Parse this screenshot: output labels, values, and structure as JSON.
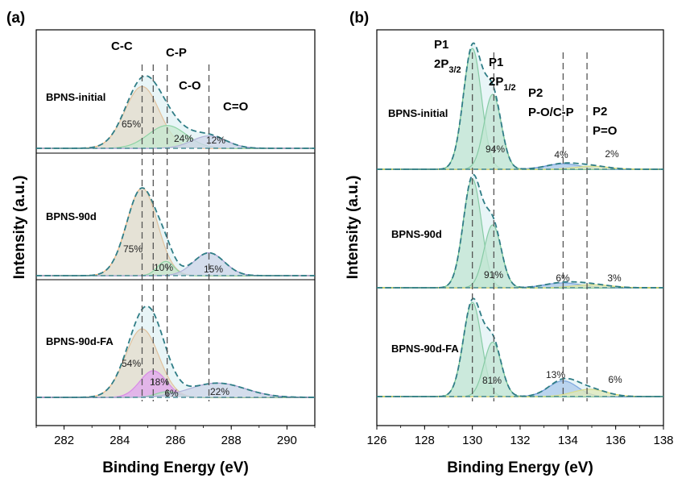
{
  "chart_data": [
    {
      "type": "area",
      "panel_label": "(a)",
      "xlabel": "Binding Energy (eV)",
      "ylabel": "Intensity (a.u.)",
      "xlim": [
        281,
        291
      ],
      "xticks": [
        "282",
        "284",
        "286",
        "288",
        "290"
      ],
      "grid": false,
      "peaks": [
        {
          "name": "C-C",
          "position": 284.8,
          "color": "#f2a35e"
        },
        {
          "name": "C-P",
          "position": 285.2,
          "color": "#5cc26a"
        },
        {
          "name": "C-O",
          "position": 285.7,
          "color": "#5cc26a"
        },
        {
          "name": "C=O",
          "position": 287.2,
          "color": "#9a86c8"
        }
      ],
      "spectra": [
        {
          "sample": "BPNS-initial",
          "components": [
            {
              "peak": "C-C",
              "center": 284.8,
              "amplitude": 0.65,
              "sigma": 0.62,
              "color": "#f2a35e",
              "fill": "#f8d2b0",
              "label": "65%"
            },
            {
              "peak": "C-P/C-O",
              "center": 285.7,
              "amplitude": 0.24,
              "sigma": 0.68,
              "color": "#5cc26a",
              "fill": "#bfe7b8",
              "label": "24%"
            },
            {
              "peak": "C=O",
              "center": 287.2,
              "amplitude": 0.13,
              "sigma": 0.62,
              "color": "#9a86c8",
              "fill": "#cfc4e6",
              "label": "12%"
            }
          ]
        },
        {
          "sample": "BPNS-90d",
          "components": [
            {
              "peak": "C-C",
              "center": 284.8,
              "amplitude": 0.92,
              "sigma": 0.55,
              "color": "#f2a35e",
              "fill": "#f8d2b0",
              "label": "75%"
            },
            {
              "peak": "C-P/C-O",
              "center": 285.65,
              "amplitude": 0.15,
              "sigma": 0.3,
              "color": "#5cc26a",
              "fill": "#bfe7b8",
              "label": "10%"
            },
            {
              "peak": "C=O",
              "center": 287.2,
              "amplitude": 0.24,
              "sigma": 0.55,
              "color": "#9a86c8",
              "fill": "#cfc4e6",
              "label": "15%"
            }
          ]
        },
        {
          "sample": "BPNS-90d-FA",
          "components": [
            {
              "peak": "C-C",
              "center": 284.8,
              "amplitude": 0.72,
              "sigma": 0.6,
              "color": "#f2a35e",
              "fill": "#f8d2b0",
              "label": "54%"
            },
            {
              "peak": "C-P",
              "center": 285.2,
              "amplitude": 0.28,
              "sigma": 0.48,
              "color": "#e23ce0",
              "fill": "#f26ff0",
              "label": "18%"
            },
            {
              "peak": "C-O",
              "center": 285.7,
              "amplitude": 0.06,
              "sigma": 0.4,
              "color": "#5cc26a",
              "fill": "#bfe7b8",
              "label": "6%"
            },
            {
              "peak": "C=O",
              "center": 287.5,
              "amplitude": 0.15,
              "sigma": 1.0,
              "color": "#9a86c8",
              "fill": "#cfc4e6",
              "label": "22%"
            }
          ]
        }
      ]
    },
    {
      "type": "area",
      "panel_label": "(b)",
      "xlabel": "Binding Energy (eV)",
      "ylabel": "Intensity (a.u.)",
      "xlim": [
        126,
        138
      ],
      "xticks": [
        "126",
        "128",
        "130",
        "132",
        "134",
        "136",
        "138"
      ],
      "grid": false,
      "peaks": [
        {
          "name": "P1 2P3/2",
          "line1": "P1",
          "line2_main": "2P",
          "line2_sub": "3/2",
          "position": 130.0
        },
        {
          "name": "P1 2P1/2",
          "line1": "P1",
          "line2_main": "2P",
          "line2_sub": "1/2",
          "position": 130.9
        },
        {
          "name": "P2 P-O/C-P",
          "line1": "P2",
          "line2_main": "P-O/C-P",
          "line2_sub": "",
          "position": 133.8
        },
        {
          "name": "P2 P=O",
          "line1": "P2",
          "line2_main": "P=O",
          "line2_sub": "",
          "position": 134.8
        }
      ],
      "spectra": [
        {
          "sample": "BPNS-initial",
          "components": [
            {
              "peak": "2P3/2",
              "center": 130.0,
              "amplitude": 1.0,
              "sigma": 0.38,
              "color": "#4fb36b",
              "fill": "#b9e3bd",
              "label": "94%"
            },
            {
              "peak": "2P1/2",
              "center": 130.85,
              "amplitude": 0.62,
              "sigma": 0.36,
              "color": "#4fb36b",
              "fill": "#b9e3bd",
              "label": ""
            },
            {
              "peak": "P-O/C-P",
              "center": 133.8,
              "amplitude": 0.045,
              "sigma": 0.7,
              "color": "#3b6fd1",
              "fill": "#8fb0ea",
              "label": "4%"
            },
            {
              "peak": "P=O",
              "center": 135.0,
              "amplitude": 0.025,
              "sigma": 0.7,
              "color": "#e3d43c",
              "fill": "#f1ea8c",
              "label": "2%"
            }
          ]
        },
        {
          "sample": "BPNS-90d",
          "components": [
            {
              "peak": "2P3/2",
              "center": 130.0,
              "amplitude": 0.9,
              "sigma": 0.38,
              "color": "#4fb36b",
              "fill": "#b9e3bd",
              "label": "91%"
            },
            {
              "peak": "2P1/2",
              "center": 130.85,
              "amplitude": 0.52,
              "sigma": 0.36,
              "color": "#4fb36b",
              "fill": "#b9e3bd",
              "label": ""
            },
            {
              "peak": "P-O/C-P",
              "center": 133.8,
              "amplitude": 0.04,
              "sigma": 0.75,
              "color": "#3b6fd1",
              "fill": "#8fb0ea",
              "label": "6%"
            },
            {
              "peak": "P=O",
              "center": 135.0,
              "amplitude": 0.025,
              "sigma": 0.75,
              "color": "#e3d43c",
              "fill": "#f1ea8c",
              "label": "3%"
            }
          ]
        },
        {
          "sample": "BPNS-90d-FA",
          "components": [
            {
              "peak": "2P3/2",
              "center": 130.0,
              "amplitude": 0.78,
              "sigma": 0.38,
              "color": "#4fb36b",
              "fill": "#b9e3bd",
              "label": "81%"
            },
            {
              "peak": "2P1/2",
              "center": 130.85,
              "amplitude": 0.45,
              "sigma": 0.36,
              "color": "#4fb36b",
              "fill": "#b9e3bd",
              "label": ""
            },
            {
              "peak": "P-O/C-P",
              "center": 133.8,
              "amplitude": 0.13,
              "sigma": 0.6,
              "color": "#3b6fd1",
              "fill": "#8fb0ea",
              "label": "13%"
            },
            {
              "peak": "P=O",
              "center": 134.9,
              "amplitude": 0.06,
              "sigma": 0.7,
              "color": "#e3d43c",
              "fill": "#f1ea8c",
              "label": "6%"
            }
          ]
        }
      ]
    }
  ]
}
